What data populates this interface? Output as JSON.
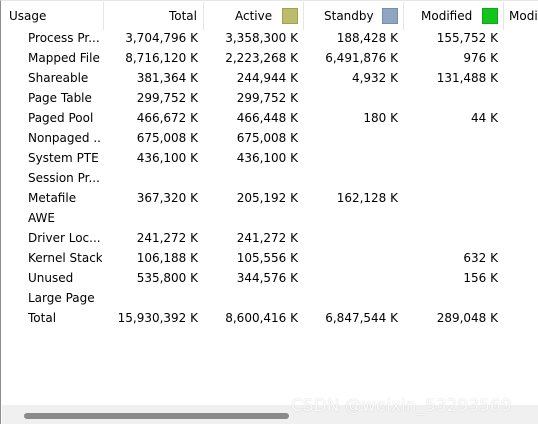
{
  "columns": {
    "usage": "Usage",
    "total": "Total",
    "active": "Active",
    "standby": "Standby",
    "modified": "Modified",
    "modified_partial": "Modi"
  },
  "colors": {
    "active": "#bdbc6b",
    "standby": "#8fa6c2",
    "modified": "#12c41c"
  },
  "rows": [
    {
      "usage": "Process Pr...",
      "total": "3,704,796 K",
      "active": "3,358,300 K",
      "standby": "188,428 K",
      "modified": "155,752 K"
    },
    {
      "usage": "Mapped File",
      "total": "8,716,120 K",
      "active": "2,223,268 K",
      "standby": "6,491,876 K",
      "modified": "976 K"
    },
    {
      "usage": "Shareable",
      "total": "381,364 K",
      "active": "244,944 K",
      "standby": "4,932 K",
      "modified": "131,488 K"
    },
    {
      "usage": "Page Table",
      "total": "299,752 K",
      "active": "299,752 K",
      "standby": "",
      "modified": ""
    },
    {
      "usage": "Paged Pool",
      "total": "466,672 K",
      "active": "466,448 K",
      "standby": "180 K",
      "modified": "44 K"
    },
    {
      "usage": "Nonpaged ...",
      "total": "675,008 K",
      "active": "675,008 K",
      "standby": "",
      "modified": ""
    },
    {
      "usage": "System PTE",
      "total": "436,100 K",
      "active": "436,100 K",
      "standby": "",
      "modified": ""
    },
    {
      "usage": "Session Pr...",
      "total": "",
      "active": "",
      "standby": "",
      "modified": ""
    },
    {
      "usage": "Metafile",
      "total": "367,320 K",
      "active": "205,192 K",
      "standby": "162,128 K",
      "modified": ""
    },
    {
      "usage": "AWE",
      "total": "",
      "active": "",
      "standby": "",
      "modified": ""
    },
    {
      "usage": "Driver Loc...",
      "total": "241,272 K",
      "active": "241,272 K",
      "standby": "",
      "modified": ""
    },
    {
      "usage": "Kernel Stack",
      "total": "106,188 K",
      "active": "105,556 K",
      "standby": "",
      "modified": "632 K"
    },
    {
      "usage": "Unused",
      "total": "535,800 K",
      "active": "344,576 K",
      "standby": "",
      "modified": "156 K"
    },
    {
      "usage": "Large Page",
      "total": "",
      "active": "",
      "standby": "",
      "modified": ""
    },
    {
      "usage": "Total",
      "total": "15,930,392 K",
      "active": "8,600,416 K",
      "standby": "6,847,544 K",
      "modified": "289,048 K"
    }
  ],
  "watermark": "CSDN @weixin_53293569"
}
